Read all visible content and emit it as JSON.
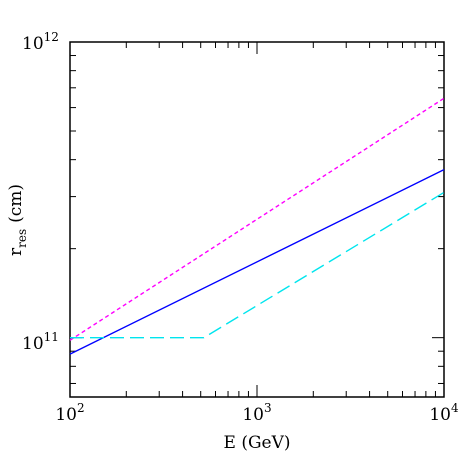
{
  "chart_data": {
    "type": "line",
    "title": "",
    "xlabel": "E (GeV)",
    "ylabel": {
      "base": "r",
      "subscript": "res",
      "unit": "(cm)"
    },
    "xscale": "log",
    "yscale": "log",
    "xlim": [
      100,
      10000
    ],
    "ylim": [
      63000000000,
      1000000000000
    ],
    "x_ticks": [
      {
        "base": "10",
        "exp": "2"
      },
      {
        "base": "10",
        "exp": "3"
      },
      {
        "base": "10",
        "exp": "4"
      }
    ],
    "y_ticks": [
      {
        "base": "10",
        "exp": "11"
      },
      {
        "base": "10",
        "exp": "12"
      }
    ],
    "grid": false,
    "legend": "none",
    "series": [
      {
        "color": "#ff00ff",
        "style": "short-dash",
        "points": [
          [
            100,
            98000000000
          ],
          [
            10000,
            645000000000
          ]
        ]
      },
      {
        "color": "#0000ff",
        "style": "solid",
        "points": [
          [
            100,
            88000000000
          ],
          [
            10000,
            370000000000
          ]
        ]
      },
      {
        "color": "#00e5ee",
        "style": "long-dash",
        "points": [
          [
            100,
            100000000000
          ],
          [
            520,
            100000000000
          ],
          [
            10000,
            310000000000
          ]
        ]
      }
    ]
  }
}
